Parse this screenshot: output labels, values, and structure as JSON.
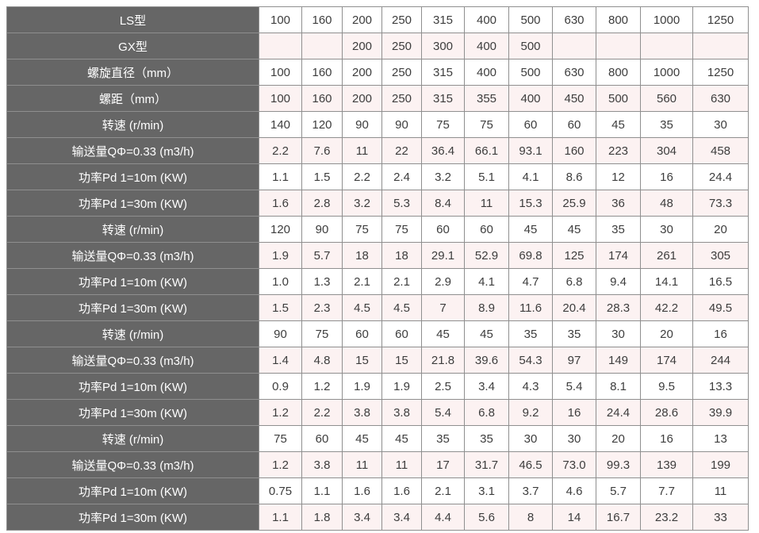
{
  "colors": {
    "header_bg": "#666666",
    "header_text": "#ffffff",
    "band_row_bg": "#fcf2f2",
    "plain_row_bg": "#ffffff",
    "border": "#8f8f8f",
    "cell_text": "#3d3d3d"
  },
  "chart_data": {
    "type": "table",
    "rows": [
      {
        "label": "LS型",
        "values": [
          "100",
          "160",
          "200",
          "250",
          "315",
          "400",
          "500",
          "630",
          "800",
          "1000",
          "1250"
        ]
      },
      {
        "label": "GX型",
        "values": [
          "",
          "",
          "200",
          "250",
          "300",
          "400",
          "500",
          "",
          "",
          "",
          ""
        ]
      },
      {
        "label": "螺旋直径（mm）",
        "values": [
          "100",
          "160",
          "200",
          "250",
          "315",
          "400",
          "500",
          "630",
          "800",
          "1000",
          "1250"
        ]
      },
      {
        "label": "螺距（mm）",
        "values": [
          "100",
          "160",
          "200",
          "250",
          "315",
          "355",
          "400",
          "450",
          "500",
          "560",
          "630"
        ]
      },
      {
        "label": "转速 (r/min)",
        "values": [
          "140",
          "120",
          "90",
          "90",
          "75",
          "75",
          "60",
          "60",
          "45",
          "35",
          "30"
        ]
      },
      {
        "label": "输送量QΦ=0.33 (m3/h)",
        "values": [
          "2.2",
          "7.6",
          "11",
          "22",
          "36.4",
          "66.1",
          "93.1",
          "160",
          "223",
          "304",
          "458"
        ]
      },
      {
        "label": "功率Pd 1=10m (KW)",
        "values": [
          "1.1",
          "1.5",
          "2.2",
          "2.4",
          "3.2",
          "5.1",
          "4.1",
          "8.6",
          "12",
          "16",
          "24.4"
        ]
      },
      {
        "label": "功率Pd 1=30m (KW)",
        "values": [
          "1.6",
          "2.8",
          "3.2",
          "5.3",
          "8.4",
          "11",
          "15.3",
          "25.9",
          "36",
          "48",
          "73.3"
        ]
      },
      {
        "label": "转速 (r/min)",
        "values": [
          "120",
          "90",
          "75",
          "75",
          "60",
          "60",
          "45",
          "45",
          "35",
          "30",
          "20"
        ]
      },
      {
        "label": "输送量QΦ=0.33 (m3/h)",
        "values": [
          "1.9",
          "5.7",
          "18",
          "18",
          "29.1",
          "52.9",
          "69.8",
          "125",
          "174",
          "261",
          "305"
        ]
      },
      {
        "label": "功率Pd 1=10m (KW)",
        "values": [
          "1.0",
          "1.3",
          "2.1",
          "2.1",
          "2.9",
          "4.1",
          "4.7",
          "6.8",
          "9.4",
          "14.1",
          "16.5"
        ]
      },
      {
        "label": "功率Pd 1=30m (KW)",
        "values": [
          "1.5",
          "2.3",
          "4.5",
          "4.5",
          "7",
          "8.9",
          "11.6",
          "20.4",
          "28.3",
          "42.2",
          "49.5"
        ]
      },
      {
        "label": "转速 (r/min)",
        "values": [
          "90",
          "75",
          "60",
          "60",
          "45",
          "45",
          "35",
          "35",
          "30",
          "20",
          "16"
        ]
      },
      {
        "label": "输送量QΦ=0.33 (m3/h)",
        "values": [
          "1.4",
          "4.8",
          "15",
          "15",
          "21.8",
          "39.6",
          "54.3",
          "97",
          "149",
          "174",
          "244"
        ]
      },
      {
        "label": "功率Pd 1=10m (KW)",
        "values": [
          "0.9",
          "1.2",
          "1.9",
          "1.9",
          "2.5",
          "3.4",
          "4.3",
          "5.4",
          "8.1",
          "9.5",
          "13.3"
        ]
      },
      {
        "label": "功率Pd 1=30m (KW)",
        "values": [
          "1.2",
          "2.2",
          "3.8",
          "3.8",
          "5.4",
          "6.8",
          "9.2",
          "16",
          "24.4",
          "28.6",
          "39.9"
        ]
      },
      {
        "label": "转速 (r/min)",
        "values": [
          "75",
          "60",
          "45",
          "45",
          "35",
          "35",
          "30",
          "30",
          "20",
          "16",
          "13"
        ]
      },
      {
        "label": "输送量QΦ=0.33 (m3/h)",
        "values": [
          "1.2",
          "3.8",
          "11",
          "11",
          "17",
          "31.7",
          "46.5",
          "73.0",
          "99.3",
          "139",
          "199"
        ]
      },
      {
        "label": "功率Pd 1=10m (KW)",
        "values": [
          "0.75",
          "1.1",
          "1.6",
          "1.6",
          "2.1",
          "3.1",
          "3.7",
          "4.6",
          "5.7",
          "7.7",
          "11"
        ]
      },
      {
        "label": "功率Pd 1=30m (KW)",
        "values": [
          "1.1",
          "1.8",
          "3.4",
          "3.4",
          "4.4",
          "5.6",
          "8",
          "14",
          "16.7",
          "23.2",
          "33"
        ]
      }
    ]
  }
}
